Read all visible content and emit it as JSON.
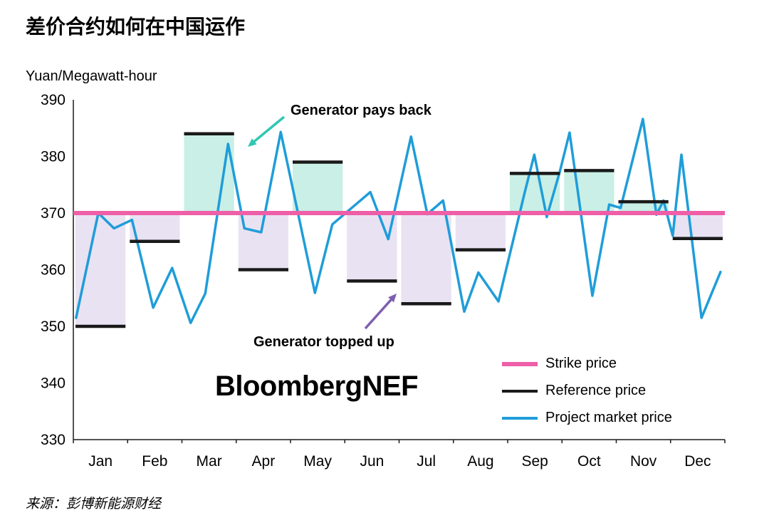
{
  "header": {
    "title": "差价合约如何在中国运作",
    "unit_label": "Yuan/Megawatt-hour"
  },
  "annotations": {
    "pays_back_label": "Generator pays back",
    "topped_up_label": "Generator topped up",
    "pays_back_arrow_color": "#2fc7b2",
    "topped_up_arrow_color": "#7e5fae"
  },
  "watermark": "BloombergNEF",
  "legend": [
    {
      "label": "Strike price",
      "color": "#ee5fa7"
    },
    {
      "label": "Reference price",
      "color": "#1a1a1a"
    },
    {
      "label": "Project market price",
      "color": "#1f9dd9"
    }
  ],
  "source": "来源：彭博新能源财经",
  "chart_data": {
    "type": "line",
    "title": "差价合约如何在中国运作",
    "xlabel": "",
    "ylabel": "Yuan/Megawatt-hour",
    "ylim": [
      330,
      390
    ],
    "yticks": [
      330,
      340,
      350,
      360,
      370,
      380,
      390
    ],
    "grid": false,
    "legend_position": "bottom-right",
    "categories": [
      "Jan",
      "Feb",
      "Mar",
      "Apr",
      "May",
      "Jun",
      "Jul",
      "Aug",
      "Sep",
      "Oct",
      "Nov",
      "Dec"
    ],
    "strike_price": 370,
    "reference_prices": [
      350,
      365,
      384,
      360,
      379,
      358,
      354,
      363.5,
      377,
      377.5,
      372,
      365.5
    ],
    "market_price": {
      "x_month": [
        0.05,
        0.46,
        0.75,
        1.08,
        1.47,
        1.82,
        2.16,
        2.43,
        2.85,
        3.15,
        3.46,
        3.82,
        4.45,
        4.77,
        5.47,
        5.8,
        6.22,
        6.52,
        6.81,
        7.2,
        7.46,
        7.83,
        8.31,
        8.49,
        8.72,
        8.96,
        9.14,
        9.56,
        9.87,
        10.08,
        10.49,
        10.74,
        10.87,
        11.04,
        11.2,
        11.57,
        11.92
      ],
      "values": [
        351.5,
        370,
        367.3,
        368.8,
        353.3,
        360.3,
        350.6,
        355.8,
        382.2,
        367.3,
        366.6,
        384.3,
        355.9,
        368,
        373.7,
        365.4,
        383.5,
        369.8,
        372.2,
        352.6,
        359.5,
        354.4,
        373.5,
        380.3,
        369.3,
        377.3,
        384.2,
        355.4,
        371.5,
        370.9,
        386.6,
        369.7,
        372.2,
        366,
        380.3,
        351.5,
        359.6
      ]
    },
    "shading": {
      "above_color": "#c9efe6",
      "below_color": "#e9e2f2",
      "above_meaning": "Generator pays back",
      "below_meaning": "Generator topped up"
    }
  }
}
